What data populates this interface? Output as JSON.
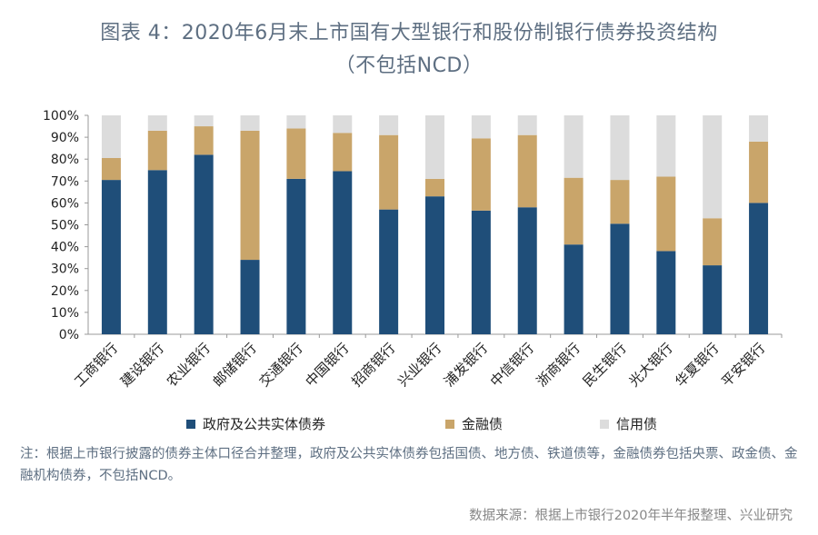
{
  "title_line1": "图表 4：2020年6月末上市国有大型银行和股份制银行债券投资结构",
  "title_line2": "（不包括NCD）",
  "note": "注：根据上市银行披露的债券主体口径合并整理，政府及公共实体债券包括国债、地方债、铁道债等，金融债券包括央票、政金债、金融机构债券，不包括NCD。",
  "source": "数据来源：根据上市银行2020年半年报整理、兴业研究",
  "colors": {
    "gov": "#1f4e79",
    "fin": "#c9a56a",
    "credit": "#dcdcdc"
  },
  "chart_data": {
    "type": "bar",
    "stacked": true,
    "categories": [
      "工商银行",
      "建设银行",
      "农业银行",
      "邮储银行",
      "交通银行",
      "中国银行",
      "招商银行",
      "兴业银行",
      "浦发银行",
      "中信银行",
      "浙商银行",
      "民生银行",
      "光大银行",
      "华夏银行",
      "平安银行"
    ],
    "series": [
      {
        "name": "政府及公共实体债券",
        "values": [
          70.5,
          75,
          82,
          34,
          71,
          74.5,
          57,
          63,
          56.5,
          58,
          41,
          50.5,
          38,
          31.5,
          60
        ]
      },
      {
        "name": "金融债",
        "values": [
          10,
          18,
          13,
          59,
          23,
          17.5,
          34,
          8,
          33,
          33,
          30.5,
          20,
          34,
          21.5,
          28
        ]
      },
      {
        "name": "信用债",
        "values": [
          19.5,
          7,
          5,
          7,
          6,
          8,
          9,
          29,
          10.5,
          9,
          28.5,
          29.5,
          28,
          47,
          12
        ]
      }
    ],
    "ylim": [
      0,
      100
    ],
    "yticks": [
      "0%",
      "10%",
      "20%",
      "30%",
      "40%",
      "50%",
      "60%",
      "70%",
      "80%",
      "90%",
      "100%"
    ],
    "grid": false,
    "legend_position": "bottom"
  }
}
